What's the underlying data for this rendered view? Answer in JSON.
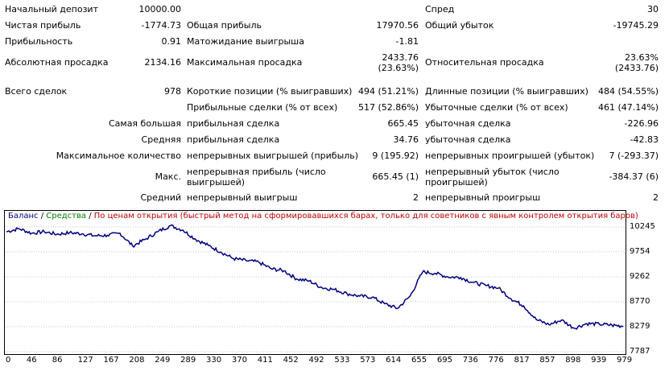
{
  "stats": {
    "initial_deposit_label": "Начальный депозит",
    "initial_deposit": "10000.00",
    "spread_label": "Спред",
    "spread": "30",
    "net_profit_label": "Чистая прибыль",
    "net_profit": "-1774.73",
    "gross_profit_label": "Общая прибыль",
    "gross_profit": "17970.56",
    "gross_loss_label": "Общий убыток",
    "gross_loss": "-19745.29",
    "profit_factor_label": "Прибыльность",
    "profit_factor": "0.91",
    "expected_payoff_label": "Матожидание выигрыша",
    "expected_payoff": "-1.81",
    "abs_drawdown_label": "Абсолютная просадка",
    "abs_drawdown": "2134.16",
    "max_drawdown_label": "Максимальная просадка",
    "max_drawdown_line1": "2433.76",
    "max_drawdown_line2": "(23.63%)",
    "rel_drawdown_label": "Относительная просадка",
    "rel_drawdown_line1": "23.63%",
    "rel_drawdown_line2": "(2433.76)",
    "total_trades_label": "Всего сделок",
    "total_trades": "978",
    "short_positions_label": "Короткие позиции (% выигравших)",
    "short_positions": "494 (51.21%)",
    "long_positions_label": "Длинные позиции (% выигравших)",
    "long_positions": "484 (54.55%)",
    "profit_trades_label": "Прибыльные сделки (% от всех)",
    "profit_trades": "517 (52.86%)",
    "loss_trades_label": "Убыточные сделки (% от всех)",
    "loss_trades": "461 (47.14%)",
    "largest_label": "Самая большая",
    "largest_profit_label": "прибыльная сделка",
    "largest_profit": "665.45",
    "largest_loss_label": "убыточная сделка",
    "largest_loss": "-226.96",
    "average_label": "Средняя",
    "average_profit_label": "прибыльная сделка",
    "average_profit": "34.76",
    "average_loss_label": "убыточная сделка",
    "average_loss": "-42.83",
    "max_count_label": "Максимальное количество",
    "max_cons_wins_label": "непрерывных выигрышей (прибыль)",
    "max_cons_wins": "9 (195.92)",
    "max_cons_losses_label": "непрерывных проигрышей (убыток)",
    "max_cons_losses": "7 (-293.37)",
    "max_label": "Макс.",
    "max_cons_profit_label_1": "непрерывная прибыль (число",
    "max_cons_profit_label_2": "выигрышей)",
    "max_cons_profit": "665.45 (1)",
    "max_cons_loss_label_1": "непрерывный убыток (число",
    "max_cons_loss_label_2": "проигрышей)",
    "max_cons_loss": "-384.37 (6)",
    "avg_label": "Средний",
    "avg_cons_wins_label": "непрерывный выигрыш",
    "avg_cons_wins": "2",
    "avg_cons_losses_label": "непрерывный проигрыш",
    "avg_cons_losses": "2"
  },
  "legend": {
    "balance": "Баланс",
    "sep1": " / ",
    "equity": "Средства",
    "sep2": " / ",
    "mode": "По ценам открытия (быстрый метод на сформировавшихся барах, только для советников с явным контролем открытия баров)"
  },
  "colors": {
    "balance": "#000080",
    "equity": "#008000",
    "mode": "#c00000",
    "grid": "#c8c8c8"
  },
  "chart_data": {
    "type": "line",
    "series": [
      {
        "name": "Баланс",
        "x": [
          0,
          20,
          40,
          60,
          80,
          100,
          120,
          140,
          160,
          180,
          200,
          220,
          240,
          260,
          280,
          300,
          320,
          340,
          360,
          380,
          400,
          420,
          440,
          460,
          480,
          500,
          520,
          540,
          560,
          580,
          600,
          620,
          640,
          660,
          680,
          700,
          720,
          740,
          760,
          780,
          800,
          820,
          840,
          860,
          880,
          900,
          920,
          940,
          960,
          978
        ],
        "values": [
          10150,
          10210,
          10120,
          10150,
          10100,
          10130,
          10110,
          10070,
          10080,
          10120,
          9870,
          10000,
          10150,
          10270,
          10180,
          10000,
          9880,
          9750,
          9620,
          9580,
          9550,
          9420,
          9380,
          9220,
          9180,
          9050,
          9010,
          8930,
          8880,
          8860,
          8730,
          8640,
          8880,
          9360,
          9330,
          9260,
          9250,
          9150,
          9090,
          9040,
          8830,
          8690,
          8420,
          8320,
          8410,
          8250,
          8340,
          8330,
          8310,
          8290
        ]
      }
    ],
    "y_ticks": [
      "10245",
      "9754",
      "9262",
      "8770",
      "8279",
      "7787"
    ],
    "x_ticks": [
      "0",
      "46",
      "86",
      "127",
      "167",
      "208",
      "249",
      "289",
      "330",
      "370",
      "411",
      "452",
      "492",
      "533",
      "573",
      "614",
      "655",
      "695",
      "736",
      "776",
      "817",
      "857",
      "898",
      "939",
      "979"
    ],
    "ylim": [
      7787,
      10450
    ],
    "xlim": [
      0,
      979
    ],
    "grid": true
  }
}
